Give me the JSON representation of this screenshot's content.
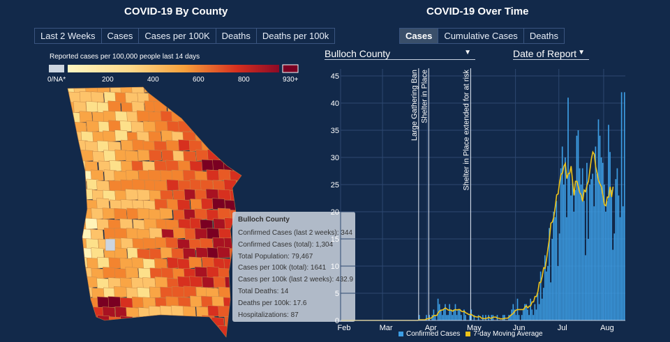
{
  "left_panel": {
    "title": "COVID-19 By County",
    "tabs": [
      {
        "label": "Last 2 Weeks",
        "active": false
      },
      {
        "label": "Cases",
        "active": false
      },
      {
        "label": "Cases per 100K",
        "active": false
      },
      {
        "label": "Deaths",
        "active": false
      },
      {
        "label": "Deaths per 100k",
        "active": false
      }
    ],
    "legend": {
      "title": "Reported cases per 100,000 people last 14 days",
      "na_label": "0/NA*",
      "ticks": [
        "200",
        "400",
        "600",
        "800"
      ],
      "max_label": "930+",
      "colors": {
        "na": "#ccd5e0",
        "low": "#fff6c2",
        "mid": "#f7a13c",
        "high": "#d7301f",
        "max": "#7a0022"
      }
    },
    "tooltip": {
      "title": "Bulloch County",
      "lines": [
        "Confirmed Cases (last 2 weeks): 344",
        "Confirmed Cases (total): 1,304",
        "Total Population: 79,467",
        "Cases per 100k (total): 1641",
        "Cases per 100k (last 2 weeks): 432.9",
        "Total Deaths: 14",
        "Deaths per 100k: 17.6",
        "Hospitalizations: 87"
      ]
    }
  },
  "right_panel": {
    "title": "COVID-19 Over Time",
    "tabs": [
      {
        "label": "Cases",
        "active": true
      },
      {
        "label": "Cumulative Cases",
        "active": false
      },
      {
        "label": "Deaths",
        "active": false
      }
    ],
    "county_select": "Bulloch County",
    "date_select": "Date of Report"
  },
  "chart_data": {
    "type": "bar",
    "x_ticks": [
      "Feb",
      "Mar",
      "Apr",
      "May",
      "Jun",
      "Jul",
      "Aug"
    ],
    "ylim": [
      0,
      45
    ],
    "y_ticks": [
      0,
      5,
      10,
      15,
      20,
      25,
      30,
      35,
      40,
      45
    ],
    "grid": true,
    "annotations": [
      {
        "label": "Large Gathering Ban",
        "date_index": 54
      },
      {
        "label": "Shelter in Place",
        "date_index": 61
      },
      {
        "label": "Shelter in Place extended for at risk",
        "date_index": 90
      }
    ],
    "legend": [
      "Confirmed Cases",
      "7-day Moving Average"
    ],
    "colors": {
      "bars": "#3d9ee5",
      "average": "#f0c419"
    },
    "start_date": "2020-02-01",
    "series": [
      {
        "name": "Confirmed Cases",
        "values": [
          0,
          0,
          0,
          0,
          0,
          0,
          0,
          0,
          0,
          0,
          0,
          0,
          0,
          0,
          0,
          0,
          0,
          0,
          0,
          0,
          0,
          0,
          0,
          0,
          0,
          0,
          0,
          0,
          0,
          0,
          0,
          0,
          0,
          0,
          0,
          0,
          0,
          0,
          0,
          0,
          0,
          0,
          0,
          0,
          0,
          0,
          0,
          0,
          0,
          0,
          0,
          0,
          0,
          0,
          1,
          0,
          0,
          0,
          0,
          1,
          0,
          1,
          0,
          1,
          2,
          1,
          0,
          4,
          3,
          2,
          1,
          2,
          3,
          1,
          1,
          3,
          2,
          1,
          2,
          3,
          1,
          2,
          2,
          1,
          0,
          2,
          1,
          0,
          0,
          1,
          2,
          0,
          1,
          0,
          0,
          1,
          0,
          0,
          1,
          0,
          1,
          0,
          1,
          0,
          1,
          1,
          0,
          0,
          1,
          0,
          0,
          0,
          1,
          1,
          0,
          0,
          1,
          1,
          2,
          3,
          2,
          1,
          4,
          1,
          0,
          1,
          2,
          3,
          3,
          2,
          1,
          4,
          2,
          1,
          3,
          2,
          5,
          3,
          9,
          4,
          6,
          12,
          9,
          10,
          17,
          7,
          15,
          20,
          19,
          22,
          10,
          16,
          28,
          32,
          25,
          30,
          19,
          41,
          27,
          23,
          26,
          20,
          24,
          34,
          35,
          28,
          25,
          28,
          22,
          12,
          29,
          15,
          25,
          26,
          27,
          21,
          32,
          27,
          37,
          34,
          30,
          29,
          25,
          20,
          22,
          36,
          31,
          24,
          13,
          16,
          26,
          28,
          23,
          19,
          42,
          21,
          42
        ]
      },
      {
        "name": "7-day Moving Average",
        "values": [
          0,
          0,
          0,
          0,
          0,
          0,
          0,
          0,
          0,
          0,
          0,
          0,
          0,
          0,
          0,
          0,
          0,
          0,
          0,
          0,
          0,
          0,
          0,
          0,
          0,
          0,
          0,
          0,
          0,
          0,
          0,
          0,
          0,
          0,
          0,
          0,
          0,
          0,
          0,
          0,
          0,
          0,
          0,
          0,
          0,
          0,
          0,
          0,
          0,
          0,
          0,
          0,
          0,
          0,
          0.1,
          0.1,
          0.1,
          0.1,
          0.1,
          0.3,
          0.3,
          0.4,
          0.4,
          0.6,
          0.9,
          0.9,
          0.9,
          1.4,
          1.7,
          1.9,
          1.9,
          2.1,
          2.3,
          2.1,
          1.9,
          1.9,
          1.9,
          1.7,
          1.9,
          2.0,
          1.9,
          2.0,
          2.0,
          1.7,
          1.6,
          1.7,
          1.4,
          1.3,
          1.1,
          1.1,
          1.1,
          0.9,
          0.7,
          0.7,
          0.6,
          0.7,
          0.7,
          0.4,
          0.4,
          0.3,
          0.4,
          0.4,
          0.6,
          0.4,
          0.4,
          0.6,
          0.6,
          0.6,
          0.4,
          0.4,
          0.3,
          0.3,
          0.3,
          0.4,
          0.4,
          0.4,
          0.6,
          0.9,
          1.1,
          1.3,
          1.7,
          1.9,
          2.0,
          2.0,
          2.0,
          2.0,
          2.0,
          2.4,
          2.7,
          2.3,
          2.6,
          2.7,
          3.4,
          3.4,
          4.4,
          4.4,
          5.3,
          7.0,
          7.0,
          8.1,
          9.7,
          9.6,
          11.3,
          13.3,
          15.1,
          17.9,
          18.1,
          19.0,
          20.9,
          23.1,
          23.3,
          25.4,
          26.9,
          27.1,
          28.4,
          28.9,
          26.1,
          27.0,
          27.1,
          28.4,
          25.6,
          23.0,
          25.6,
          25.6,
          24.6,
          23.5,
          23.1,
          21.9,
          24.0,
          23.7,
          24.9,
          25.6,
          27.7,
          29.7,
          31.0,
          30.6,
          28.3,
          27.1,
          25.7,
          25.1,
          24.6,
          23.0,
          21.3,
          21.1,
          22.7,
          22.7,
          24.6,
          22.7,
          24.6
        ]
      }
    ]
  }
}
